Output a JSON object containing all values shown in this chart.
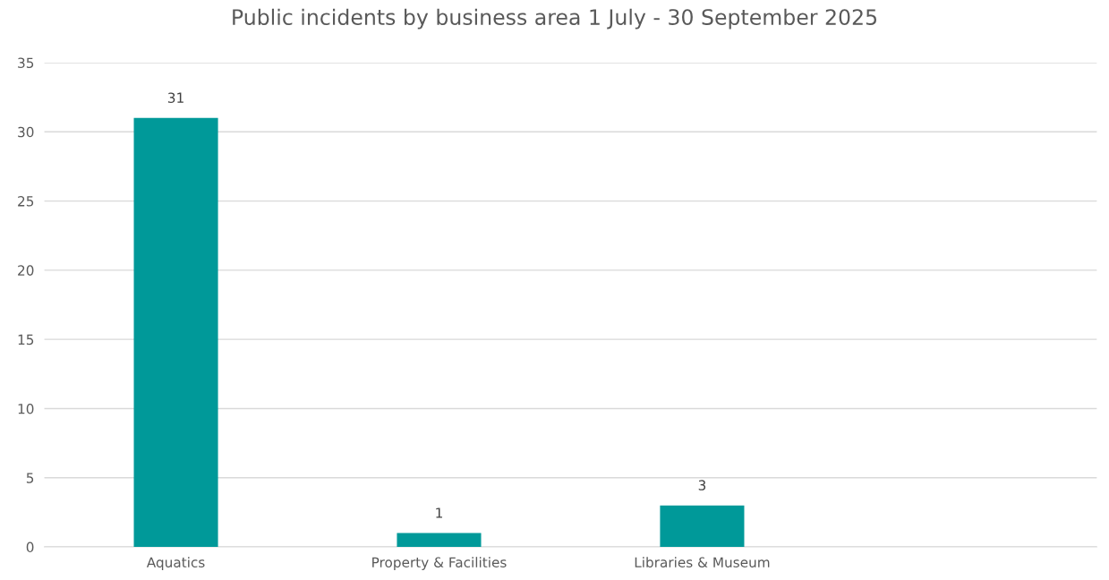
{
  "chart_data": {
    "type": "bar",
    "title": "Public incidents by business area 1 July - 30 September 2025",
    "categories": [
      "Aquatics",
      "Property & Facilities",
      "Libraries & Museum",
      null
    ],
    "values": [
      31,
      1,
      3,
      null
    ],
    "color": "#009999",
    "ylim": [
      0,
      35
    ],
    "yticks": [
      0,
      5,
      10,
      15,
      20,
      25,
      30,
      35
    ],
    "grid": "y",
    "data_labels": true
  }
}
